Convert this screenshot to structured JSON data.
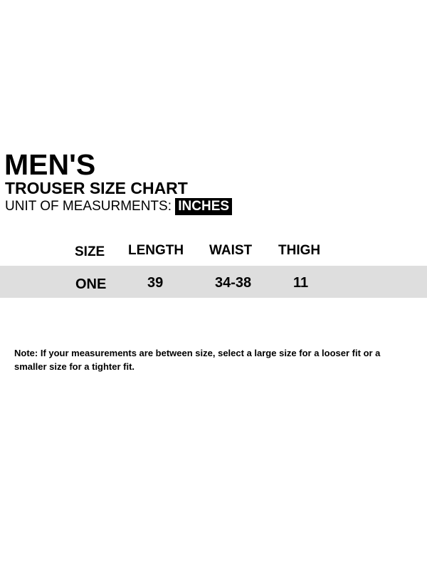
{
  "header": {
    "title": "MEN'S",
    "subtitle": "TROUSER SIZE CHART",
    "unit_label": "UNIT OF MEASURMENTS:",
    "unit_value": "INCHES"
  },
  "table": {
    "columns": [
      "SIZE",
      "LENGTH",
      "WAIST",
      "THIGH"
    ],
    "rows": [
      [
        "ONE",
        "39",
        "34-38",
        "11"
      ]
    ],
    "row_band_color": "#dedede"
  },
  "note": "Note: If your measurements are between size, select a large size for a looser fit or a smaller size for a tighter fit."
}
